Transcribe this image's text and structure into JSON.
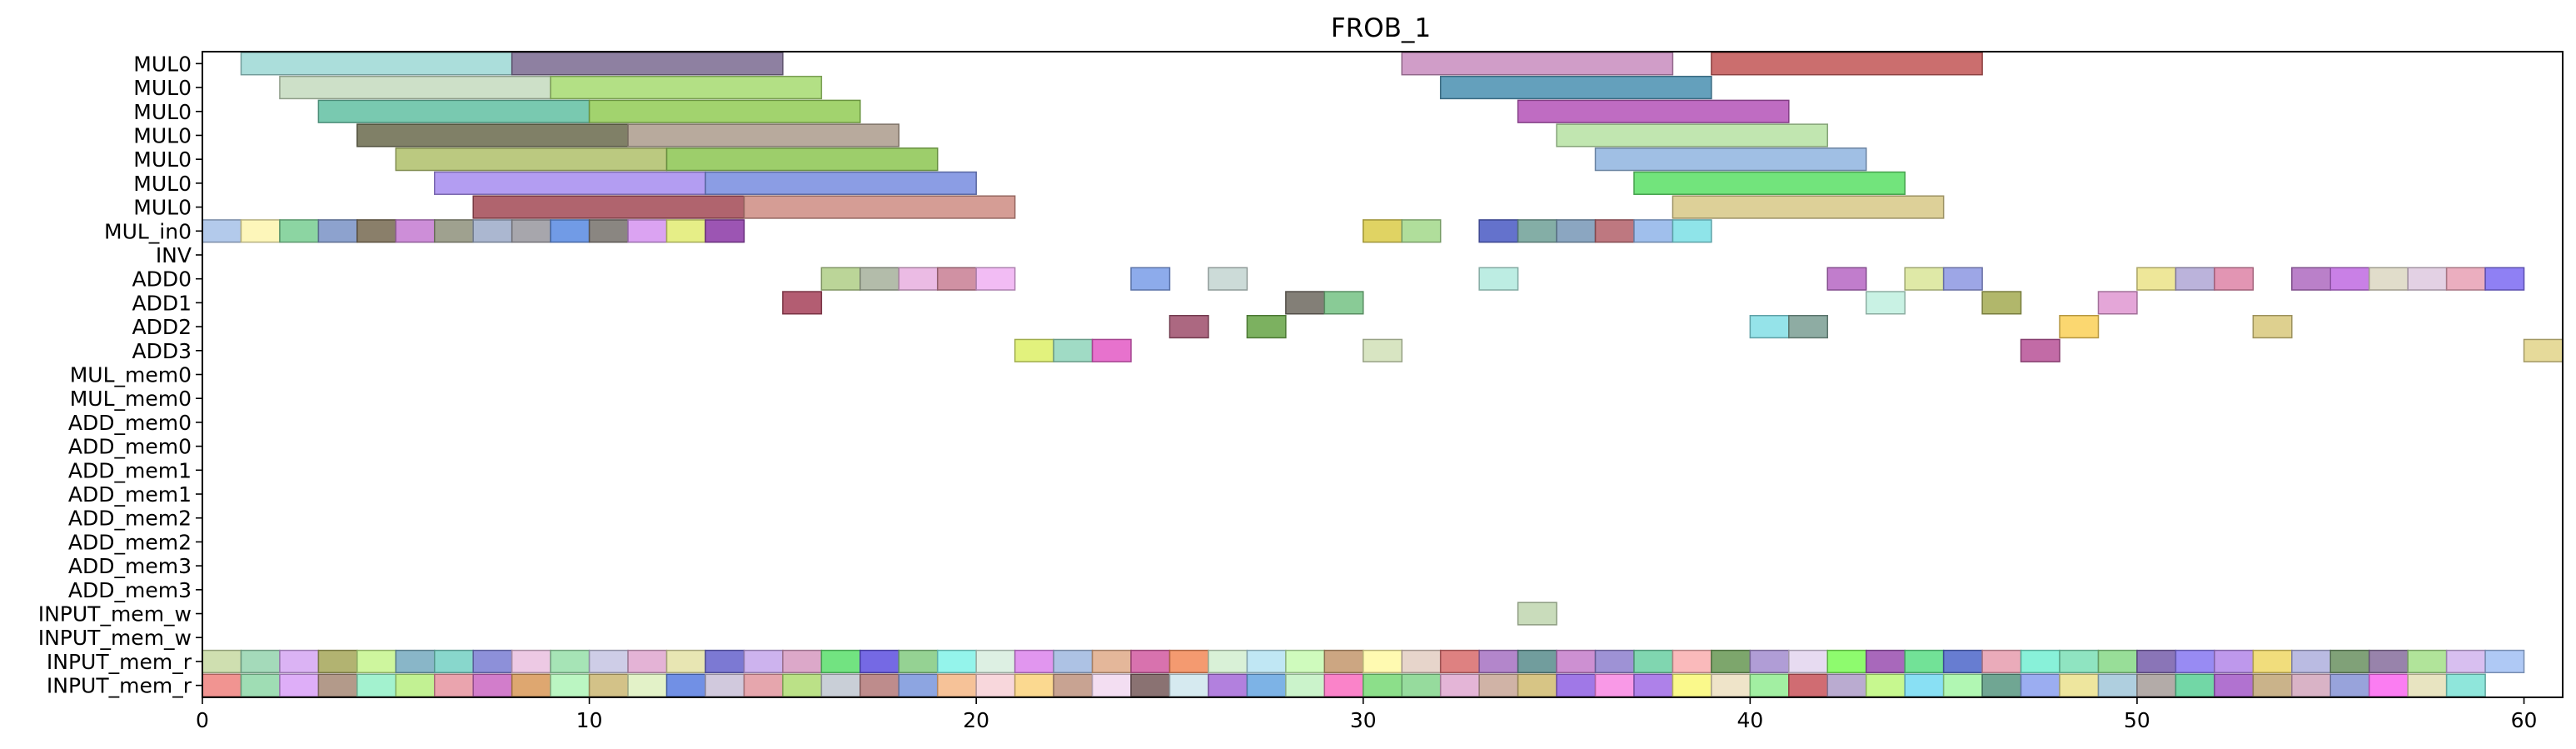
{
  "chart_data": {
    "type": "gantt",
    "title": "FROB_1",
    "xlabel": "",
    "ylabel": "",
    "xlim": [
      0,
      61
    ],
    "x_ticks": [
      0,
      10,
      20,
      30,
      40,
      50,
      60
    ],
    "x_tick_labels": [
      "0",
      "10",
      "20",
      "30",
      "40",
      "50",
      "60"
    ],
    "grid": false,
    "rows": [
      "MUL0",
      "MUL0",
      "MUL0",
      "MUL0",
      "MUL0",
      "MUL0",
      "MUL0",
      "MUL_in0",
      "INV",
      "ADD0",
      "ADD1",
      "ADD2",
      "ADD3",
      "MUL_mem0",
      "MUL_mem0",
      "ADD_mem0",
      "ADD_mem0",
      "ADD_mem1",
      "ADD_mem1",
      "ADD_mem2",
      "ADD_mem2",
      "ADD_mem3",
      "ADD_mem3",
      "INPUT_mem_w",
      "INPUT_mem_w",
      "INPUT_mem_r",
      "INPUT_mem_r"
    ],
    "tasks": [
      {
        "row": 0,
        "start": 1,
        "end": 8,
        "color": "#9fd9d6"
      },
      {
        "row": 0,
        "start": 8,
        "end": 15,
        "color": "#7e6e94"
      },
      {
        "row": 0,
        "start": 31,
        "end": 38,
        "color": "#c98fc0"
      },
      {
        "row": 0,
        "start": 39,
        "end": 46,
        "color": "#c45a5a"
      },
      {
        "row": 1,
        "start": 2,
        "end": 9,
        "color": "#c6dcc0"
      },
      {
        "row": 1,
        "start": 9,
        "end": 16,
        "color": "#a9dc74"
      },
      {
        "row": 1,
        "start": 32,
        "end": 39,
        "color": "#4f93b3"
      },
      {
        "row": 2,
        "start": 3,
        "end": 10,
        "color": "#67c2a5"
      },
      {
        "row": 2,
        "start": 10,
        "end": 17,
        "color": "#95cd5a"
      },
      {
        "row": 2,
        "start": 34,
        "end": 41,
        "color": "#b658b9"
      },
      {
        "row": 3,
        "start": 4,
        "end": 11,
        "color": "#6e6e52"
      },
      {
        "row": 3,
        "start": 11,
        "end": 18,
        "color": "#ae9e8f"
      },
      {
        "row": 3,
        "start": 35,
        "end": 42,
        "color": "#b8e3a5"
      },
      {
        "row": 4,
        "start": 5,
        "end": 12,
        "color": "#b2c26e"
      },
      {
        "row": 4,
        "start": 12,
        "end": 19,
        "color": "#8fc757"
      },
      {
        "row": 4,
        "start": 36,
        "end": 43,
        "color": "#93b6e0"
      },
      {
        "row": 5,
        "start": 6,
        "end": 13,
        "color": "#a88ff0"
      },
      {
        "row": 5,
        "start": 13,
        "end": 20,
        "color": "#7b8fe0"
      },
      {
        "row": 5,
        "start": 37,
        "end": 44,
        "color": "#5fe06a"
      },
      {
        "row": 6,
        "start": 7,
        "end": 14,
        "color": "#a54e5a"
      },
      {
        "row": 6,
        "start": 14,
        "end": 21,
        "color": "#cf8f86"
      },
      {
        "row": 6,
        "start": 38,
        "end": 45,
        "color": "#d8c98a"
      },
      {
        "row": 7,
        "start": 0,
        "end": 1,
        "color": "#a9c3e8"
      },
      {
        "row": 7,
        "start": 1,
        "end": 2,
        "color": "#fdf5b0"
      },
      {
        "row": 7,
        "start": 2,
        "end": 3,
        "color": "#7ccf95"
      },
      {
        "row": 7,
        "start": 3,
        "end": 4,
        "color": "#7d95c7"
      },
      {
        "row": 7,
        "start": 4,
        "end": 5,
        "color": "#7a6d55"
      },
      {
        "row": 7,
        "start": 5,
        "end": 6,
        "color": "#c67ed3"
      },
      {
        "row": 7,
        "start": 6,
        "end": 7,
        "color": "#929480"
      },
      {
        "row": 7,
        "start": 7,
        "end": 8,
        "color": "#9fadc9"
      },
      {
        "row": 7,
        "start": 8,
        "end": 9,
        "color": "#9b9aa1"
      },
      {
        "row": 7,
        "start": 9,
        "end": 10,
        "color": "#5d8de3"
      },
      {
        "row": 7,
        "start": 10,
        "end": 11,
        "color": "#7a7570"
      },
      {
        "row": 7,
        "start": 11,
        "end": 12,
        "color": "#d696f0"
      },
      {
        "row": 7,
        "start": 12,
        "end": 13,
        "color": "#e3ec76"
      },
      {
        "row": 7,
        "start": 13,
        "end": 14,
        "color": "#8e3ea8"
      },
      {
        "row": 7,
        "start": 30,
        "end": 31,
        "color": "#dccd4d"
      },
      {
        "row": 7,
        "start": 31,
        "end": 32,
        "color": "#a5d98d"
      },
      {
        "row": 7,
        "start": 33,
        "end": 34,
        "color": "#4f5ec5"
      },
      {
        "row": 7,
        "start": 34,
        "end": 35,
        "color": "#73a39a"
      },
      {
        "row": 7,
        "start": 35,
        "end": 36,
        "color": "#7b9ab8"
      },
      {
        "row": 7,
        "start": 36,
        "end": 37,
        "color": "#b5656e"
      },
      {
        "row": 7,
        "start": 37,
        "end": 38,
        "color": "#93b6e9"
      },
      {
        "row": 7,
        "start": 38,
        "end": 39,
        "color": "#7fe0e6"
      },
      {
        "row": 9,
        "start": 16,
        "end": 17,
        "color": "#b2cf8a"
      },
      {
        "row": 9,
        "start": 17,
        "end": 18,
        "color": "#a9b39e"
      },
      {
        "row": 9,
        "start": 18,
        "end": 19,
        "color": "#e8b2e0"
      },
      {
        "row": 9,
        "start": 19,
        "end": 20,
        "color": "#c98296"
      },
      {
        "row": 9,
        "start": 20,
        "end": 21,
        "color": "#f0b3f3"
      },
      {
        "row": 9,
        "start": 24,
        "end": 25,
        "color": "#7d9fe8"
      },
      {
        "row": 9,
        "start": 26,
        "end": 27,
        "color": "#c5d6d3"
      },
      {
        "row": 9,
        "start": 33,
        "end": 34,
        "color": "#b4ebdf"
      },
      {
        "row": 9,
        "start": 42,
        "end": 43,
        "color": "#b86bc5"
      },
      {
        "row": 9,
        "start": 44,
        "end": 45,
        "color": "#dbe69b"
      },
      {
        "row": 9,
        "start": 45,
        "end": 46,
        "color": "#909ae3"
      },
      {
        "row": 9,
        "start": 50,
        "end": 51,
        "color": "#ece48b"
      },
      {
        "row": 9,
        "start": 51,
        "end": 52,
        "color": "#b2a8d6"
      },
      {
        "row": 9,
        "start": 52,
        "end": 53,
        "color": "#de86a8"
      },
      {
        "row": 9,
        "start": 54,
        "end": 55,
        "color": "#b06ec2"
      },
      {
        "row": 9,
        "start": 55,
        "end": 56,
        "color": "#c26ee3"
      },
      {
        "row": 9,
        "start": 56,
        "end": 57,
        "color": "#ddd8c4"
      },
      {
        "row": 9,
        "start": 57,
        "end": 58,
        "color": "#dfcbe0"
      },
      {
        "row": 9,
        "start": 58,
        "end": 59,
        "color": "#e8a3b6"
      },
      {
        "row": 9,
        "start": 59,
        "end": 60,
        "color": "#7f6ef3"
      },
      {
        "row": 10,
        "start": 15,
        "end": 16,
        "color": "#a8475e"
      },
      {
        "row": 10,
        "start": 28,
        "end": 29,
        "color": "#726d64"
      },
      {
        "row": 10,
        "start": 29,
        "end": 30,
        "color": "#79c487"
      },
      {
        "row": 10,
        "start": 43,
        "end": 44,
        "color": "#c2f0e0"
      },
      {
        "row": 10,
        "start": 46,
        "end": 47,
        "color": "#a6ad56"
      },
      {
        "row": 10,
        "start": 49,
        "end": 50,
        "color": "#e09ad3"
      },
      {
        "row": 11,
        "start": 25,
        "end": 26,
        "color": "#a0536f"
      },
      {
        "row": 11,
        "start": 27,
        "end": 28,
        "color": "#6aa64a"
      },
      {
        "row": 11,
        "start": 40,
        "end": 41,
        "color": "#86dfe6"
      },
      {
        "row": 11,
        "start": 41,
        "end": 42,
        "color": "#7ea196"
      },
      {
        "row": 11,
        "start": 48,
        "end": 49,
        "color": "#fbd25c"
      },
      {
        "row": 11,
        "start": 53,
        "end": 54,
        "color": "#d9c980"
      },
      {
        "row": 12,
        "start": 21,
        "end": 22,
        "color": "#def06b"
      },
      {
        "row": 12,
        "start": 22,
        "end": 23,
        "color": "#93d6bd"
      },
      {
        "row": 12,
        "start": 23,
        "end": 24,
        "color": "#e45fc6"
      },
      {
        "row": 12,
        "start": 30,
        "end": 31,
        "color": "#d3e1ba"
      },
      {
        "row": 12,
        "start": 47,
        "end": 48,
        "color": "#b9579a"
      },
      {
        "row": 12,
        "start": 60,
        "end": 61,
        "color": "#e3d58c"
      },
      {
        "row": 23,
        "start": 34,
        "end": 35,
        "color": "#c2d7b2"
      }
    ],
    "memory_rows": [
      {
        "row": 25,
        "colors": [
          "#c8dba5",
          "#97d5b1",
          "#d6a8f3",
          "#a7a85d",
          "#c7f591",
          "#79acc0",
          "#77d2c5",
          "#7d81d4",
          "#eac2e0",
          "#9ae0ac",
          "#c7c6e4",
          "#e0a9d0",
          "#e5e3a9",
          "#6a67cd",
          "#c6a8ec",
          "#d79cc2",
          "#5fdf70",
          "#6254e0",
          "#86cc84",
          "#85f3e8",
          "#d8eedf",
          "#dd87ed",
          "#a2bae0",
          "#e0ad8c",
          "#d35fa3",
          "#f28c5c",
          "#d4efd2",
          "#b7e4f2",
          "#c8fbb4",
          "#c59a71",
          "#fff9a6",
          "#e4cfc4",
          "#da6f70",
          "#a875c4",
          "#5d8f8f",
          "#c681cc",
          "#9183cf",
          "#6ed0a5",
          "#f9b1b2",
          "#6b9a58",
          "#a58fd0",
          "#e4d6ef",
          "#7efa5a",
          "#9c53b2",
          "#5fde89",
          "#526bcb",
          "#e79fb1",
          "#77efd4",
          "#7fe0b8",
          "#8ad98a",
          "#7a62ad",
          "#8a7bf1",
          "#b58ae9",
          "#efd86a",
          "#b0b2de",
          "#6e9465",
          "#8a729f",
          "#a6e08c",
          "#d3b6ee",
          "#a4c2f4"
        ]
      },
      {
        "row": 26,
        "colors": [
          "#ef8582",
          "#92d8aa",
          "#d9a3f7",
          "#a88c7a",
          "#96f0c8",
          "#b9ef84",
          "#e797a3",
          "#cc6bc4",
          "#d99b5c",
          "#b2f5b9",
          "#cdb977",
          "#dff0c0",
          "#5d81e1",
          "#cbc1d8",
          "#e39aa2",
          "#b2dd76",
          "#c2c8d2",
          "#b57c7c",
          "#7d99dd",
          "#f5b98a",
          "#f7d1d7",
          "#fbd481",
          "#c09683",
          "#f1d9f0",
          "#7a5f5f",
          "#d0e7ee",
          "#a76ed9",
          "#6ba8e2",
          "#c4f1c4",
          "#f972c2",
          "#7cdb7a",
          "#88d690",
          "#e0abd1",
          "#c9a99a",
          "#d1bd74",
          "#9365e4",
          "#f88be4",
          "#a36fe6",
          "#f9f87b",
          "#ede0c1",
          "#95ed95",
          "#c9585f",
          "#b19fca",
          "#bff77f",
          "#79dcf3",
          "#a6f6a8",
          "#5c9a84",
          "#8da2ef",
          "#ece291",
          "#a4c8db",
          "#a89f9c",
          "#5ed19a",
          "#a65ec9",
          "#c3a97a",
          "#d4a8be",
          "#8a96d6",
          "#fb6bf0",
          "#e5e0b8",
          "#7fe2d6"
        ]
      }
    ]
  }
}
